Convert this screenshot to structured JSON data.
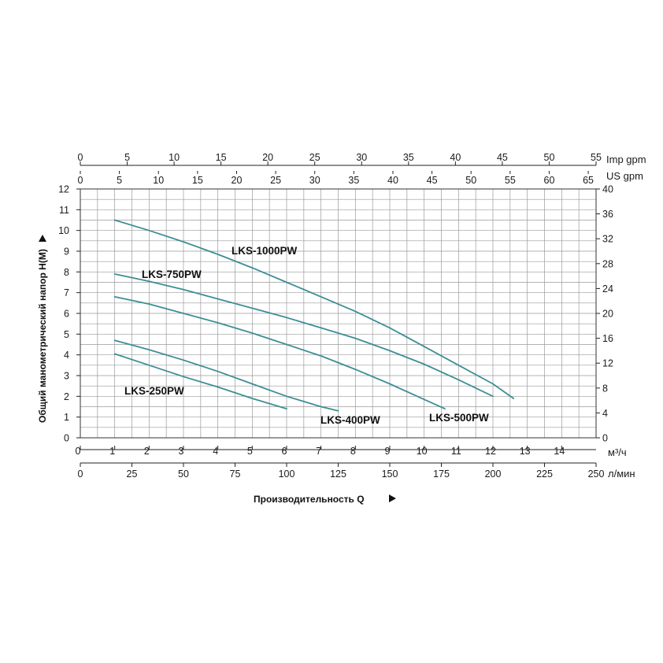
{
  "chart_data": {
    "type": "line",
    "title": "",
    "xlabel": "Производительность Q",
    "ylabel": "Общий манометрический напор H(M)",
    "x_unit_primary": "м³/ч",
    "x_unit_lpm": "л/мин",
    "top_unit_imp": "Imp gpm",
    "top_unit_us": "US gpm",
    "xlim": [
      0,
      15
    ],
    "ylim": [
      0,
      12
    ],
    "right_ylim": [
      0,
      40
    ],
    "x_ticks": [
      "0",
      "1",
      "2",
      "3",
      "4",
      "5",
      "6",
      "7",
      "8",
      "9",
      "10",
      "11",
      "12",
      "13",
      "14"
    ],
    "lpm_ticks": [
      "0",
      "25",
      "50",
      "75",
      "100",
      "125",
      "150",
      "175",
      "200",
      "225",
      "250"
    ],
    "lpm_values": [
      0,
      25,
      50,
      75,
      100,
      125,
      150,
      175,
      200,
      225,
      250
    ],
    "imp_ticks": [
      "0",
      "5",
      "10",
      "15",
      "20",
      "25",
      "30",
      "35",
      "40",
      "45",
      "50",
      "55"
    ],
    "imp_values": [
      0,
      5,
      10,
      15,
      20,
      25,
      30,
      35,
      40,
      45,
      50,
      55
    ],
    "us_ticks": [
      "0",
      "5",
      "10",
      "15",
      "20",
      "25",
      "30",
      "35",
      "40",
      "45",
      "50",
      "55",
      "60",
      "65"
    ],
    "us_values": [
      0,
      5,
      10,
      15,
      20,
      25,
      30,
      35,
      40,
      45,
      50,
      55,
      60,
      65
    ],
    "y_ticks": [
      "0",
      "1",
      "2",
      "3",
      "4",
      "5",
      "6",
      "7",
      "8",
      "9",
      "10",
      "11",
      "12"
    ],
    "right_ticks": [
      "0",
      "4",
      "8",
      "12",
      "16",
      "20",
      "24",
      "28",
      "32",
      "36",
      "40"
    ],
    "right_values": [
      0,
      4,
      8,
      12,
      16,
      20,
      24,
      28,
      32,
      36,
      40
    ],
    "grid": true,
    "line_color": "#3d8f95",
    "series": [
      {
        "name": "LKS-1000PW",
        "x": [
          1,
          2,
          3,
          4,
          5,
          6,
          7,
          8,
          9,
          10,
          11,
          12,
          12.6
        ],
        "y": [
          10.5,
          10.0,
          9.45,
          8.85,
          8.2,
          7.5,
          6.8,
          6.1,
          5.3,
          4.4,
          3.5,
          2.6,
          1.9
        ]
      },
      {
        "name": "LKS-750PW",
        "x": [
          1,
          2,
          3,
          4,
          5,
          6,
          7,
          8,
          9,
          10,
          11,
          12
        ],
        "y": [
          7.9,
          7.55,
          7.15,
          6.7,
          6.25,
          5.8,
          5.3,
          4.8,
          4.2,
          3.55,
          2.8,
          2.0
        ]
      },
      {
        "name": "LKS-500PW",
        "x": [
          1,
          2,
          3,
          4,
          5,
          6,
          7,
          8,
          9,
          10,
          10.6
        ],
        "y": [
          6.8,
          6.45,
          6.0,
          5.55,
          5.05,
          4.5,
          3.95,
          3.3,
          2.6,
          1.85,
          1.4
        ]
      },
      {
        "name": "LKS-400PW",
        "x": [
          1,
          2,
          3,
          4,
          5,
          6,
          7,
          7.5
        ],
        "y": [
          4.7,
          4.25,
          3.75,
          3.2,
          2.6,
          2.0,
          1.5,
          1.3
        ]
      },
      {
        "name": "LKS-250PW",
        "x": [
          1,
          2,
          3,
          4,
          5,
          6
        ],
        "y": [
          4.05,
          3.5,
          2.95,
          2.45,
          1.9,
          1.4
        ]
      }
    ]
  }
}
